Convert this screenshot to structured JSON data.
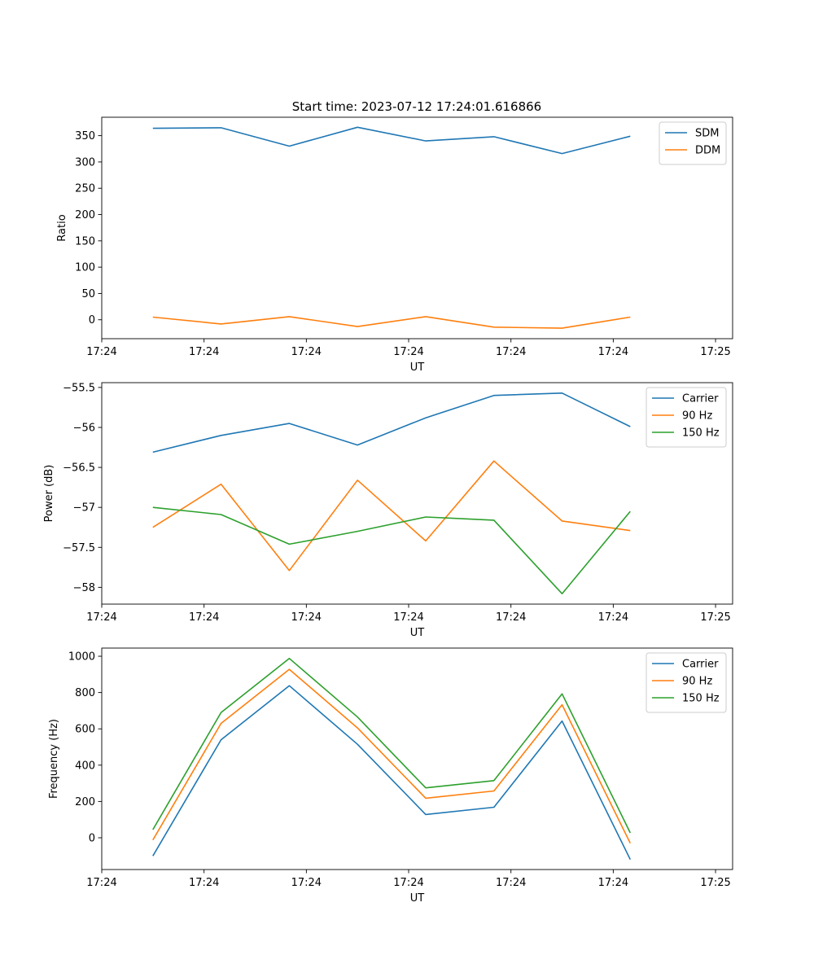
{
  "figure": {
    "title": "Start time: 2023-07-12 17:24:01.616866"
  },
  "chart_data": [
    {
      "type": "line",
      "xlabel": "UT",
      "ylabel": "Ratio",
      "xticks": [
        "17:24",
        "17:24",
        "17:24",
        "17:24",
        "17:24",
        "17:24",
        "17:25"
      ],
      "xlim": [
        -0.75,
        8.5
      ],
      "ylim": [
        -36,
        385
      ],
      "yticks": [
        0,
        50,
        100,
        150,
        200,
        250,
        300,
        350
      ],
      "x": [
        0,
        1,
        2,
        3,
        4,
        5,
        6,
        7
      ],
      "legend_position": "top-right",
      "series": [
        {
          "name": "SDM",
          "color": "#1f77b4",
          "values": [
            364,
            365,
            330,
            366,
            340,
            348,
            316,
            349
          ]
        },
        {
          "name": "DDM",
          "color": "#ff7f0e",
          "values": [
            5,
            -8,
            6,
            -13,
            6,
            -14,
            -16,
            5
          ]
        }
      ]
    },
    {
      "type": "line",
      "xlabel": "UT",
      "ylabel": "Power (dB)",
      "xticks": [
        "17:24",
        "17:24",
        "17:24",
        "17:24",
        "17:24",
        "17:24",
        "17:25"
      ],
      "xlim": [
        -0.75,
        8.5
      ],
      "ylim": [
        -58.21,
        -55.44
      ],
      "yticks": [
        -58.0,
        -57.5,
        -57.0,
        -56.5,
        -56.0,
        -55.5
      ],
      "x": [
        0,
        1,
        2,
        3,
        4,
        5,
        6,
        7
      ],
      "legend_position": "top-right",
      "series": [
        {
          "name": "Carrier",
          "color": "#1f77b4",
          "values": [
            -56.31,
            -56.1,
            -55.95,
            -56.22,
            -55.88,
            -55.6,
            -55.57,
            -55.99
          ]
        },
        {
          "name": "90 Hz",
          "color": "#ff7f0e",
          "values": [
            -57.25,
            -56.71,
            -57.79,
            -56.66,
            -57.42,
            -56.42,
            -57.17,
            -57.29
          ]
        },
        {
          "name": "150 Hz",
          "color": "#2ca02c",
          "values": [
            -57.0,
            -57.09,
            -57.46,
            -57.3,
            -57.12,
            -57.16,
            -58.08,
            -57.05
          ]
        }
      ]
    },
    {
      "type": "line",
      "xlabel": "UT",
      "ylabel": "Frequency (Hz)",
      "xticks": [
        "17:24",
        "17:24",
        "17:24",
        "17:24",
        "17:24",
        "17:24",
        "17:25"
      ],
      "xlim": [
        -0.75,
        8.5
      ],
      "ylim": [
        -175,
        1045
      ],
      "yticks": [
        0,
        200,
        400,
        600,
        800,
        1000
      ],
      "x": [
        0,
        1,
        2,
        3,
        4,
        5,
        6,
        7
      ],
      "legend_position": "top-right",
      "series": [
        {
          "name": "Carrier",
          "color": "#1f77b4",
          "values": [
            -100,
            540,
            838,
            515,
            128,
            168,
            643,
            -120
          ]
        },
        {
          "name": "90 Hz",
          "color": "#ff7f0e",
          "values": [
            -12,
            630,
            928,
            605,
            218,
            258,
            733,
            -30
          ]
        },
        {
          "name": "150 Hz",
          "color": "#2ca02c",
          "values": [
            45,
            690,
            988,
            665,
            275,
            315,
            793,
            27
          ]
        }
      ]
    }
  ]
}
